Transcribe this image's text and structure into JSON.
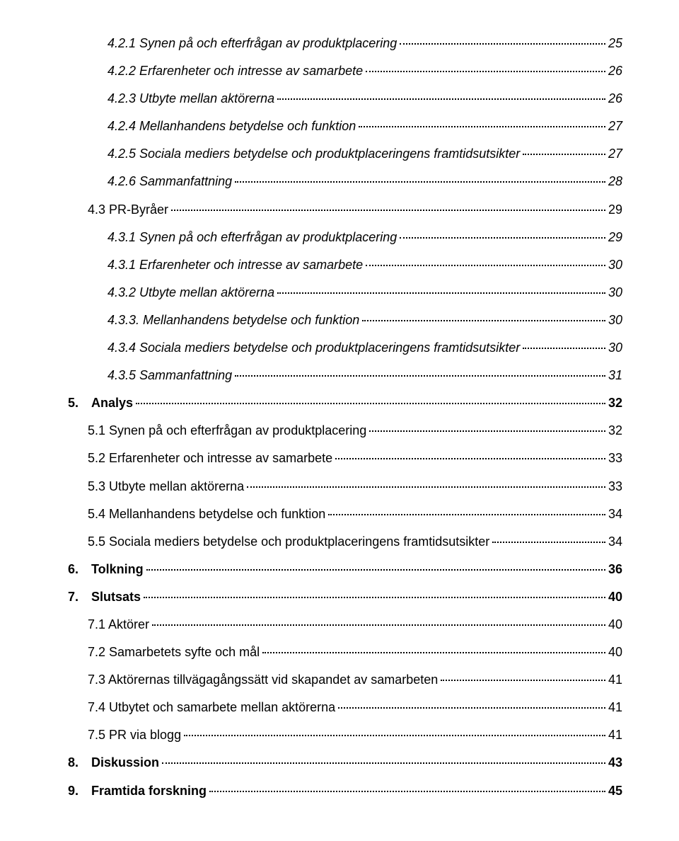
{
  "entries": [
    {
      "level": 3,
      "italic": true,
      "label": "4.2.1 Synen på och efterfrågan av produktplacering",
      "page": "25"
    },
    {
      "level": 3,
      "italic": true,
      "label": "4.2.2 Erfarenheter och intresse av samarbete",
      "page": "26"
    },
    {
      "level": 3,
      "italic": true,
      "label": "4.2.3 Utbyte mellan aktörerna",
      "page": "26"
    },
    {
      "level": 3,
      "italic": true,
      "label": "4.2.4 Mellanhandens betydelse och funktion",
      "page": "27"
    },
    {
      "level": 3,
      "italic": true,
      "label": "4.2.5 Sociala mediers betydelse och produktplaceringens framtidsutsikter",
      "page": "27"
    },
    {
      "level": 3,
      "italic": true,
      "label": "4.2.6 Sammanfattning",
      "page": "28"
    },
    {
      "level": 2,
      "italic": false,
      "label": "4.3 PR-Byråer",
      "page": "29"
    },
    {
      "level": 3,
      "italic": true,
      "label": "4.3.1 Synen på och efterfrågan av produktplacering",
      "page": "29"
    },
    {
      "level": 3,
      "italic": true,
      "label": "4.3.1 Erfarenheter och intresse av samarbete",
      "page": "30"
    },
    {
      "level": 3,
      "italic": true,
      "label": "4.3.2 Utbyte mellan aktörerna",
      "page": "30"
    },
    {
      "level": 3,
      "italic": true,
      "label": "4.3.3. Mellanhandens betydelse och funktion",
      "page": "30"
    },
    {
      "level": 3,
      "italic": true,
      "label": "4.3.4 Sociala mediers betydelse och produktplaceringens framtidsutsikter",
      "page": "30"
    },
    {
      "level": 3,
      "italic": true,
      "label": "4.3.5 Sammanfattning",
      "page": "31"
    },
    {
      "level": 1,
      "italic": false,
      "label": "5.",
      "label2": "Analys",
      "page": "32",
      "hasGap": true
    },
    {
      "level": 2,
      "italic": false,
      "label": "5.1 Synen på och efterfrågan av produktplacering",
      "page": "32"
    },
    {
      "level": 2,
      "italic": false,
      "label": "5.2 Erfarenheter och intresse av samarbete",
      "page": "33"
    },
    {
      "level": 2,
      "italic": false,
      "label": "5.3 Utbyte mellan aktörerna",
      "page": "33"
    },
    {
      "level": 2,
      "italic": false,
      "label": "5.4 Mellanhandens betydelse och funktion",
      "page": "34"
    },
    {
      "level": 2,
      "italic": false,
      "label": "5.5 Sociala mediers betydelse och produktplaceringens framtidsutsikter",
      "page": "34"
    },
    {
      "level": 1,
      "italic": false,
      "label": "6.",
      "label2": "Tolkning",
      "page": "36",
      "hasGap": true
    },
    {
      "level": 1,
      "italic": false,
      "label": "7.",
      "label2": "Slutsats",
      "page": "40",
      "hasGap": true
    },
    {
      "level": 2,
      "italic": false,
      "label": "7.1 Aktörer",
      "page": "40"
    },
    {
      "level": 2,
      "italic": false,
      "label": "7.2 Samarbetets syfte och mål",
      "page": "40"
    },
    {
      "level": 2,
      "italic": false,
      "label": "7.3 Aktörernas tillvägagångssätt vid skapandet av samarbeten",
      "page": "41"
    },
    {
      "level": 2,
      "italic": false,
      "label": "7.4 Utbytet och samarbete mellan aktörerna",
      "page": "41"
    },
    {
      "level": 2,
      "italic": false,
      "label": "7.5 PR via blogg",
      "page": "41"
    },
    {
      "level": 1,
      "italic": false,
      "label": "8.",
      "label2": "Diskussion",
      "page": "43",
      "hasGap": true
    },
    {
      "level": 1,
      "italic": false,
      "label": "9.",
      "label2": "Framtida forskning",
      "page": "45",
      "hasGap": true
    }
  ]
}
